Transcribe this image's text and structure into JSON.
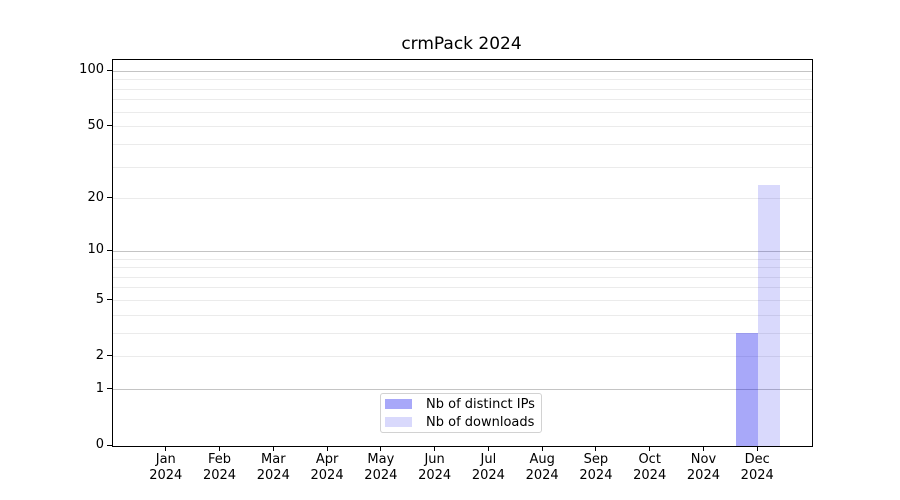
{
  "title": "crmPack 2024",
  "chart_data": {
    "type": "bar",
    "title": "crmPack 2024",
    "x_tick_labels": [
      {
        "month": "Jan",
        "year": "2024"
      },
      {
        "month": "Feb",
        "year": "2024"
      },
      {
        "month": "Mar",
        "year": "2024"
      },
      {
        "month": "Apr",
        "year": "2024"
      },
      {
        "month": "May",
        "year": "2024"
      },
      {
        "month": "Jun",
        "year": "2024"
      },
      {
        "month": "Jul",
        "year": "2024"
      },
      {
        "month": "Aug",
        "year": "2024"
      },
      {
        "month": "Sep",
        "year": "2024"
      },
      {
        "month": "Oct",
        "year": "2024"
      },
      {
        "month": "Nov",
        "year": "2024"
      },
      {
        "month": "Dec",
        "year": "2024"
      }
    ],
    "series": [
      {
        "name": "Nb of distinct IPs",
        "color": "rgba(0,0,238,0.34)",
        "values": [
          0,
          0,
          0,
          0,
          0,
          0,
          0,
          0,
          0,
          0,
          0,
          3
        ]
      },
      {
        "name": "Nb of downloads",
        "color": "rgba(0,0,238,0.15)",
        "values": [
          0,
          0,
          0,
          0,
          0,
          0,
          0,
          0,
          0,
          0,
          0,
          24
        ]
      }
    ],
    "yscale": "log1p",
    "ylim": [
      0,
      115
    ],
    "y_ticks": [
      0,
      1,
      2,
      5,
      10,
      20,
      50,
      100
    ],
    "grid": {
      "major_values": [
        1,
        10,
        100
      ],
      "minor_values": [
        2,
        3,
        4,
        5,
        6,
        7,
        8,
        9,
        20,
        30,
        40,
        50,
        60,
        70,
        80,
        90
      ],
      "major_color": "#c4c4c4",
      "minor_color": "#ebebeb"
    },
    "legend": {
      "position": "lower center",
      "items": [
        "Nb of distinct IPs",
        "Nb of downloads"
      ]
    }
  }
}
